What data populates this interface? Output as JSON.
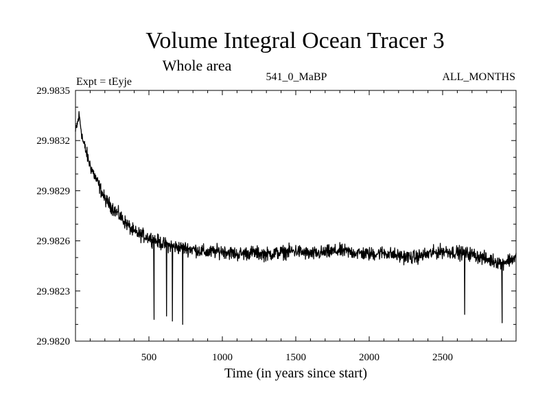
{
  "chart_data": {
    "type": "line",
    "title": "Volume Integral Ocean Tracer 3",
    "subtitle": "Whole area",
    "experiment_label": "Expt = tEyje",
    "period_label": "541_0_MaBP",
    "months_label": "ALL_MONTHS",
    "xlabel": "Time (in years since start)",
    "ylabel": "",
    "xlim": [
      0,
      3000
    ],
    "ylim": [
      29.982,
      29.9835
    ],
    "xticks": [
      500,
      1000,
      1500,
      2000,
      2500
    ],
    "xtick_labels": [
      "500",
      "1000",
      "1500",
      "2000",
      "2500"
    ],
    "yticks": [
      29.982,
      29.9823,
      29.9826,
      29.9829,
      29.9832,
      29.9835
    ],
    "ytick_labels": [
      "29.9820",
      "29.9823",
      "29.9826",
      "29.9829",
      "29.9832",
      "29.9835"
    ],
    "grid": false,
    "series": [
      {
        "name": "Volume integral ocean tracer 3",
        "color": "#000000",
        "x": [
          0,
          25,
          50,
          100,
          150,
          200,
          300,
          400,
          500,
          600,
          700,
          800,
          900,
          1000,
          1100,
          1200,
          1300,
          1400,
          1500,
          1600,
          1700,
          1800,
          1900,
          2000,
          2100,
          2200,
          2300,
          2400,
          2500,
          2600,
          2700,
          2800,
          2900,
          3000
        ],
        "values": [
          29.98325,
          29.98335,
          29.9832,
          29.98305,
          29.98295,
          29.98285,
          29.98275,
          29.98265,
          29.98262,
          29.98258,
          29.98256,
          29.98255,
          29.98253,
          29.98254,
          29.98252,
          29.98253,
          29.98252,
          29.98253,
          29.98254,
          29.98252,
          29.98253,
          29.98254,
          29.98253,
          29.98252,
          29.98253,
          29.98251,
          29.9825,
          29.98252,
          29.98254,
          29.98253,
          29.98252,
          29.98249,
          29.98247,
          29.9825
        ],
        "noise_amplitude": 6e-05,
        "outliers": [
          {
            "x": 535,
            "y": 29.98213
          },
          {
            "x": 620,
            "y": 29.98215
          },
          {
            "x": 660,
            "y": 29.98212
          },
          {
            "x": 730,
            "y": 29.9821
          },
          {
            "x": 2650,
            "y": 29.98216
          },
          {
            "x": 2905,
            "y": 29.98211
          }
        ]
      }
    ]
  }
}
